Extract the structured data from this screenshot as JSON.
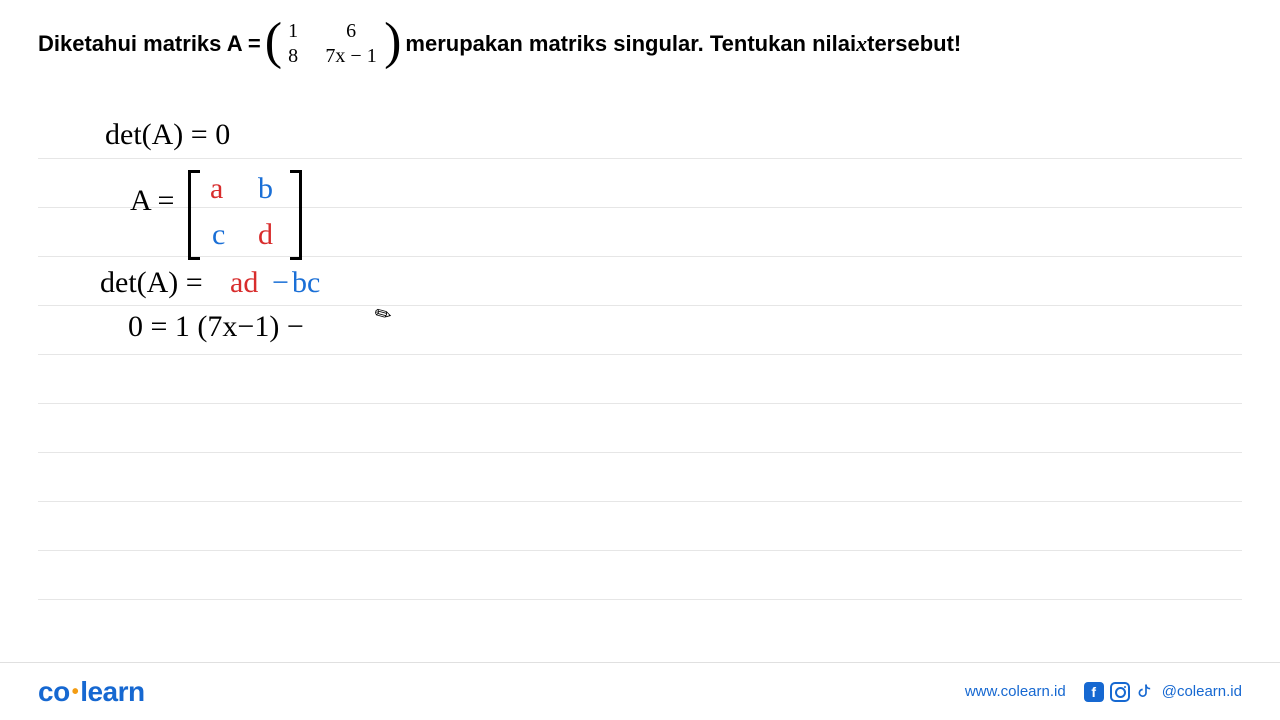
{
  "problem": {
    "pre": "Diketahui matriks A = ",
    "matrix": {
      "a": "1",
      "b": "6",
      "c": "8",
      "d": "7x − 1"
    },
    "post_1": " merupakan matriks singular. Tentukan nilai ",
    "var": "x",
    "post_2": " tersebut!"
  },
  "handwriting": {
    "line1": "det(A) = 0",
    "line2_lhs": "A =",
    "abcd": {
      "a": "a",
      "b": "b",
      "c": "c",
      "d": "d"
    },
    "line3_lhs": "det(A) =",
    "line3_ad": "ad",
    "line3_minus": "−",
    "line3_bc": "bc",
    "line4": "0 = 1 (7x−1) −",
    "colors": {
      "red": "#d82c2c",
      "blue": "#1a6fd6",
      "black": "#111111"
    }
  },
  "lines": {
    "count": 10,
    "spacing": 49
  },
  "footer": {
    "brand_co": "co",
    "brand_learn": "learn",
    "url": "www.colearn.id",
    "handle": "@colearn.id"
  }
}
